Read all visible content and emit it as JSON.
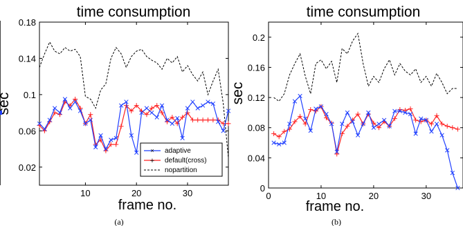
{
  "chart_data": [
    {
      "type": "line",
      "title": "time consumption",
      "xlabel": "frame no.",
      "ylabel": "sec",
      "caption": "(a)",
      "xlim": [
        1,
        38
      ],
      "ylim": [
        0,
        0.18
      ],
      "xticks": [
        10,
        20,
        30
      ],
      "xtick_labels": [
        "10",
        "20",
        "30"
      ],
      "yticks": [
        0.02,
        0.06,
        0.1,
        0.14,
        0.18
      ],
      "ytick_labels": [
        "0.02",
        "0.06",
        "0.1",
        "0.14",
        "0.18"
      ],
      "legend": {
        "position": "bottom-right",
        "entries": [
          "adaptive",
          "default(cross)",
          "nopartition"
        ]
      },
      "x": [
        1,
        2,
        3,
        4,
        5,
        6,
        7,
        8,
        9,
        10,
        11,
        12,
        13,
        14,
        15,
        16,
        17,
        18,
        19,
        20,
        21,
        22,
        23,
        24,
        25,
        26,
        27,
        28,
        29,
        30,
        31,
        32,
        33,
        34,
        35,
        36,
        37,
        38
      ],
      "series": [
        {
          "name": "adaptive",
          "color": "#1f3fff",
          "style": "solid",
          "marker": "x",
          "values": [
            0.068,
            0.062,
            0.072,
            0.085,
            0.08,
            0.095,
            0.085,
            0.092,
            0.082,
            0.068,
            0.072,
            0.042,
            0.055,
            0.04,
            0.05,
            0.052,
            0.088,
            0.092,
            0.055,
            0.036,
            0.08,
            0.085,
            0.08,
            0.075,
            0.088,
            0.072,
            0.068,
            0.074,
            0.052,
            0.085,
            0.092,
            0.085,
            0.088,
            0.092,
            0.09,
            0.07,
            0.06,
            0.082
          ]
        },
        {
          "name": "default(cross)",
          "color": "#ff2020",
          "style": "solid",
          "marker": "+",
          "values": [
            0.066,
            0.06,
            0.07,
            0.08,
            0.078,
            0.092,
            0.088,
            0.095,
            0.085,
            0.068,
            0.078,
            0.045,
            0.05,
            0.038,
            0.045,
            0.045,
            0.065,
            0.088,
            0.082,
            0.088,
            0.082,
            0.078,
            0.085,
            0.088,
            0.08,
            0.07,
            0.075,
            0.068,
            0.075,
            0.08,
            0.072,
            0.072,
            0.072,
            0.072,
            0.072,
            0.072,
            0.068,
            0.068
          ]
        },
        {
          "name": "nopartition",
          "color": "#000000",
          "style": "dashed",
          "marker": "none",
          "values": [
            0.13,
            0.145,
            0.158,
            0.148,
            0.145,
            0.152,
            0.148,
            0.15,
            0.142,
            0.098,
            0.095,
            0.085,
            0.105,
            0.112,
            0.14,
            0.152,
            0.145,
            0.13,
            0.142,
            0.148,
            0.15,
            0.142,
            0.138,
            0.135,
            0.128,
            0.14,
            0.135,
            0.142,
            0.125,
            0.132,
            0.122,
            0.115,
            0.125,
            0.1,
            0.115,
            0.128,
            0.09,
            0.03
          ]
        }
      ]
    },
    {
      "type": "line",
      "title": "time consumption",
      "xlabel": "frame no.",
      "ylabel": "sec",
      "caption": "(b)",
      "xlim": [
        0,
        37
      ],
      "ylim": [
        0,
        0.22
      ],
      "xticks": [
        0,
        10,
        20,
        30
      ],
      "xtick_labels": [
        "0",
        "10",
        "20",
        "30"
      ],
      "yticks": [
        0,
        0.04,
        0.08,
        0.12,
        0.16,
        0.2
      ],
      "ytick_labels": [
        "0",
        "0.04",
        "0.08",
        "0.12",
        "0.16",
        "0.2"
      ],
      "x": [
        1,
        2,
        3,
        4,
        5,
        6,
        7,
        8,
        9,
        10,
        11,
        12,
        13,
        14,
        15,
        16,
        17,
        18,
        19,
        20,
        21,
        22,
        23,
        24,
        25,
        26,
        27,
        28,
        29,
        30,
        31,
        32,
        33,
        34,
        35,
        36
      ],
      "series": [
        {
          "name": "adaptive",
          "color": "#1f3fff",
          "style": "solid",
          "marker": "x",
          "values": [
            0.06,
            0.058,
            0.06,
            0.085,
            0.115,
            0.122,
            0.092,
            0.076,
            0.105,
            0.108,
            0.098,
            0.085,
            0.048,
            0.085,
            0.1,
            0.088,
            0.07,
            0.085,
            0.1,
            0.08,
            0.085,
            0.09,
            0.082,
            0.102,
            0.102,
            0.1,
            0.098,
            0.072,
            0.092,
            0.09,
            0.075,
            0.085,
            0.07,
            0.05,
            0.02,
            0.0
          ]
        },
        {
          "name": "default(cross)",
          "color": "#ff2020",
          "style": "solid",
          "marker": "+",
          "values": [
            0.072,
            0.068,
            0.075,
            0.078,
            0.088,
            0.095,
            0.085,
            0.104,
            0.102,
            0.108,
            0.093,
            0.086,
            0.045,
            0.072,
            0.082,
            0.09,
            0.098,
            0.085,
            0.098,
            0.086,
            0.08,
            0.088,
            0.082,
            0.092,
            0.104,
            0.103,
            0.105,
            0.09,
            0.088,
            0.09,
            0.085,
            0.096,
            0.085,
            0.082,
            0.08,
            0.078
          ]
        },
        {
          "name": "nopartition",
          "color": "#000000",
          "style": "dashed",
          "marker": "none",
          "values": [
            0.12,
            0.115,
            0.125,
            0.15,
            0.165,
            0.178,
            0.148,
            0.125,
            0.165,
            0.17,
            0.158,
            0.168,
            0.14,
            0.185,
            0.178,
            0.195,
            0.205,
            0.165,
            0.135,
            0.148,
            0.14,
            0.158,
            0.17,
            0.15,
            0.165,
            0.155,
            0.15,
            0.158,
            0.14,
            0.148,
            0.135,
            0.152,
            0.14,
            0.125,
            0.132,
            0.132
          ]
        }
      ]
    }
  ]
}
